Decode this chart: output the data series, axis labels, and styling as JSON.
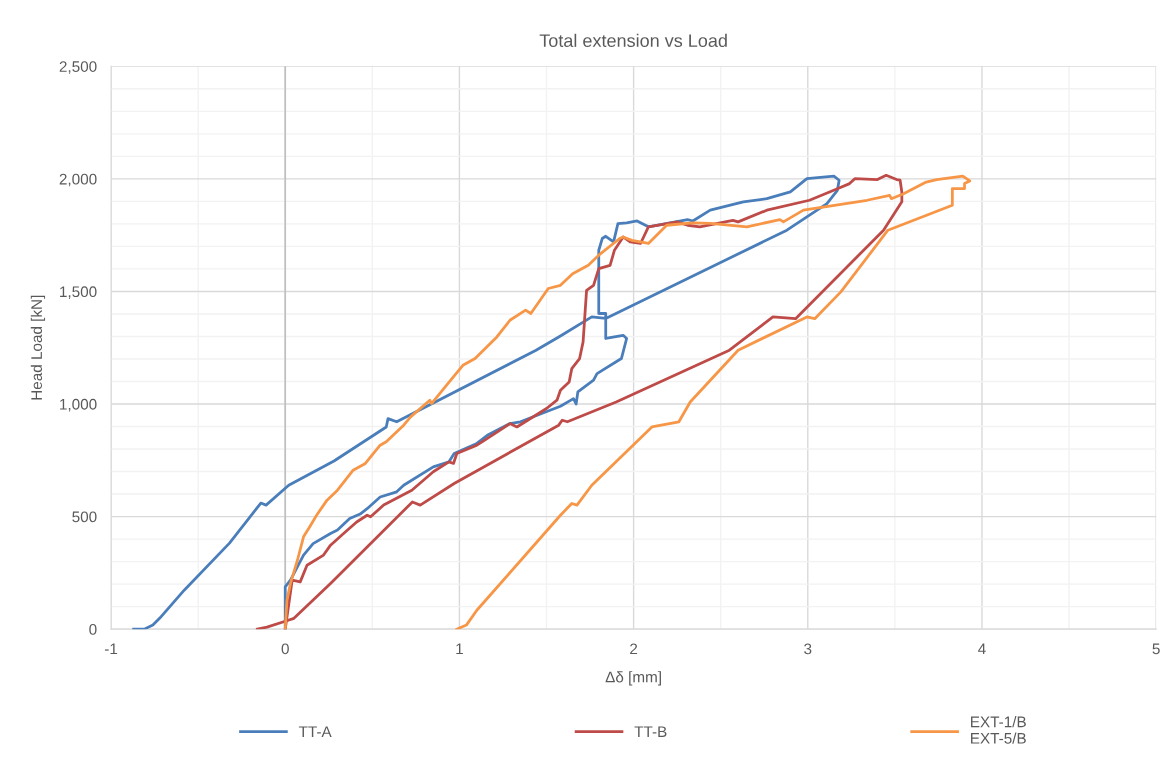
{
  "chart_data": {
    "type": "line",
    "title": "Total extension vs Load",
    "xlabel": "Δδ [mm]",
    "ylabel": "Head Load [kN]",
    "xlim": [
      -1,
      5
    ],
    "xticks": [
      -1,
      0,
      1,
      2,
      3,
      4,
      5
    ],
    "ylim": [
      0,
      2500
    ],
    "yticks": [
      0,
      500,
      {
        "value": 1000,
        "label": "1,000"
      },
      {
        "value": 1500,
        "label": "1,500"
      },
      {
        "value": 2000,
        "label": "2,000"
      },
      {
        "value": 2500,
        "label": "2,500"
      }
    ],
    "grid": true,
    "legend": "bottom",
    "marker": "none",
    "line_style": "solid",
    "ref_lines": [
      {
        "axis": "x",
        "value": 0,
        "color": "#bfbfbf"
      }
    ],
    "series": [
      {
        "name": "TT-A",
        "color": "#4a7ebb",
        "x": [
          0,
          0,
          0.03,
          0.06,
          0.105,
          0.16,
          0.26,
          0.3,
          0.37,
          0.43,
          0.47,
          0.545,
          0.64,
          0.68,
          0.85,
          0.94,
          0.97,
          1.1,
          1.16,
          1.29,
          1.35,
          1.58,
          1.655,
          1.67,
          1.68,
          1.77,
          1.79,
          1.93,
          1.96,
          1.94,
          1.84,
          1.84,
          1.8,
          1.8,
          1.82,
          1.84,
          1.885,
          1.91,
          1.96,
          2.02,
          2.085,
          2.31,
          2.34,
          2.44,
          2.63,
          2.765,
          2.9,
          2.995,
          3.15,
          3.18,
          3.17,
          3.11,
          2.88,
          1.84,
          1.76,
          1.58,
          1.44,
          0.64,
          0.59,
          0.58,
          0.28,
          0.02,
          -0.11,
          -0.14,
          -0.32,
          -0.58,
          -0.72,
          -0.76,
          -0.81,
          -0.87
        ],
        "values": [
          0,
          188,
          218,
          262,
          329,
          380,
          425,
          440,
          491,
          511,
          535,
          587,
          610,
          639,
          721,
          743,
          780,
          825,
          861,
          913,
          921,
          990,
          1024,
          1000,
          1054,
          1106,
          1135,
          1202,
          1291,
          1305,
          1291,
          1402,
          1402,
          1683,
          1735,
          1745,
          1720,
          1801,
          1805,
          1813,
          1787,
          1819,
          1813,
          1861,
          1898,
          1912,
          1942,
          2001,
          2012,
          1994,
          1949,
          1890,
          1772,
          1380,
          1387,
          1302,
          1239,
          921,
          935,
          898,
          747,
          639,
          551,
          560,
          382,
          173,
          49,
          18,
          0,
          0
        ]
      },
      {
        "name": "TT-B",
        "color": "#be4b48",
        "x": [
          0,
          0.04,
          0.086,
          0.125,
          0.22,
          0.26,
          0.335,
          0.41,
          0.47,
          0.49,
          0.565,
          0.727,
          0.85,
          0.94,
          0.966,
          0.985,
          1.1,
          1.13,
          1.29,
          1.33,
          1.5,
          1.56,
          1.58,
          1.63,
          1.645,
          1.69,
          1.71,
          1.73,
          1.77,
          1.8,
          1.865,
          1.89,
          1.94,
          1.98,
          2.04,
          2.085,
          2.25,
          2.31,
          2.38,
          2.57,
          2.6,
          2.765,
          3.01,
          3.17,
          3.24,
          3.27,
          3.4,
          3.45,
          3.51,
          3.53,
          3.54,
          3.54,
          3.435,
          2.93,
          2.8,
          2.55,
          1.9,
          1.62,
          1.59,
          1.57,
          0.97,
          0.775,
          0.73,
          0.26,
          0.05,
          0,
          -0.105,
          -0.16
        ],
        "values": [
          0,
          218,
          210,
          284,
          329,
          373,
          425,
          476,
          506,
          499,
          551,
          617,
          699,
          743,
          736,
          780,
          817,
          832,
          913,
          898,
          980,
          1017,
          1061,
          1098,
          1157,
          1202,
          1276,
          1505,
          1527,
          1601,
          1616,
          1683,
          1742,
          1720,
          1713,
          1787,
          1809,
          1794,
          1787,
          1816,
          1809,
          1861,
          1905,
          1956,
          1979,
          2001,
          1997,
          2016,
          1997,
          1994,
          1942,
          1898,
          1772,
          1379,
          1387,
          1239,
          1009,
          921,
          928,
          906,
          647,
          551,
          565,
          203,
          48,
          35,
          9,
          0
        ]
      },
      {
        "name": "EXT-1/B\nEXT-5/B",
        "color": "#f79646",
        "x": [
          0,
          0.01,
          0.03,
          0.07,
          0.105,
          0.14,
          0.18,
          0.24,
          0.3,
          0.39,
          0.46,
          0.545,
          0.58,
          0.68,
          0.72,
          0.83,
          0.84,
          0.95,
          1.02,
          1.09,
          1.215,
          1.29,
          1.38,
          1.41,
          1.51,
          1.58,
          1.65,
          1.74,
          1.8,
          1.92,
          1.94,
          1.99,
          2.085,
          2.19,
          2.34,
          2.44,
          2.65,
          2.84,
          2.86,
          2.975,
          3.34,
          3.47,
          3.48,
          3.55,
          3.68,
          3.74,
          3.89,
          3.93,
          3.9,
          3.9,
          3.83,
          3.83,
          3.46,
          3.19,
          3.04,
          2.995,
          2.6,
          2.325,
          2.26,
          2.105,
          1.76,
          1.675,
          1.645,
          1.58,
          1.1,
          1.04,
          0.985
        ],
        "values": [
          0,
          129,
          203,
          306,
          410,
          454,
          506,
          573,
          617,
          706,
          736,
          817,
          832,
          906,
          943,
          1017,
          1002,
          1106,
          1172,
          1202,
          1298,
          1372,
          1417,
          1402,
          1513,
          1527,
          1579,
          1616,
          1661,
          1735,
          1742,
          1727,
          1713,
          1794,
          1805,
          1802,
          1787,
          1819,
          1809,
          1861,
          1905,
          1927,
          1912,
          1934,
          1986,
          1997,
          2012,
          1991,
          1979,
          1957,
          1957,
          1883,
          1772,
          1498,
          1379,
          1387,
          1239,
          1009,
          921,
          898,
          639,
          551,
          558,
          506,
          84,
          18,
          0
        ]
      }
    ]
  }
}
